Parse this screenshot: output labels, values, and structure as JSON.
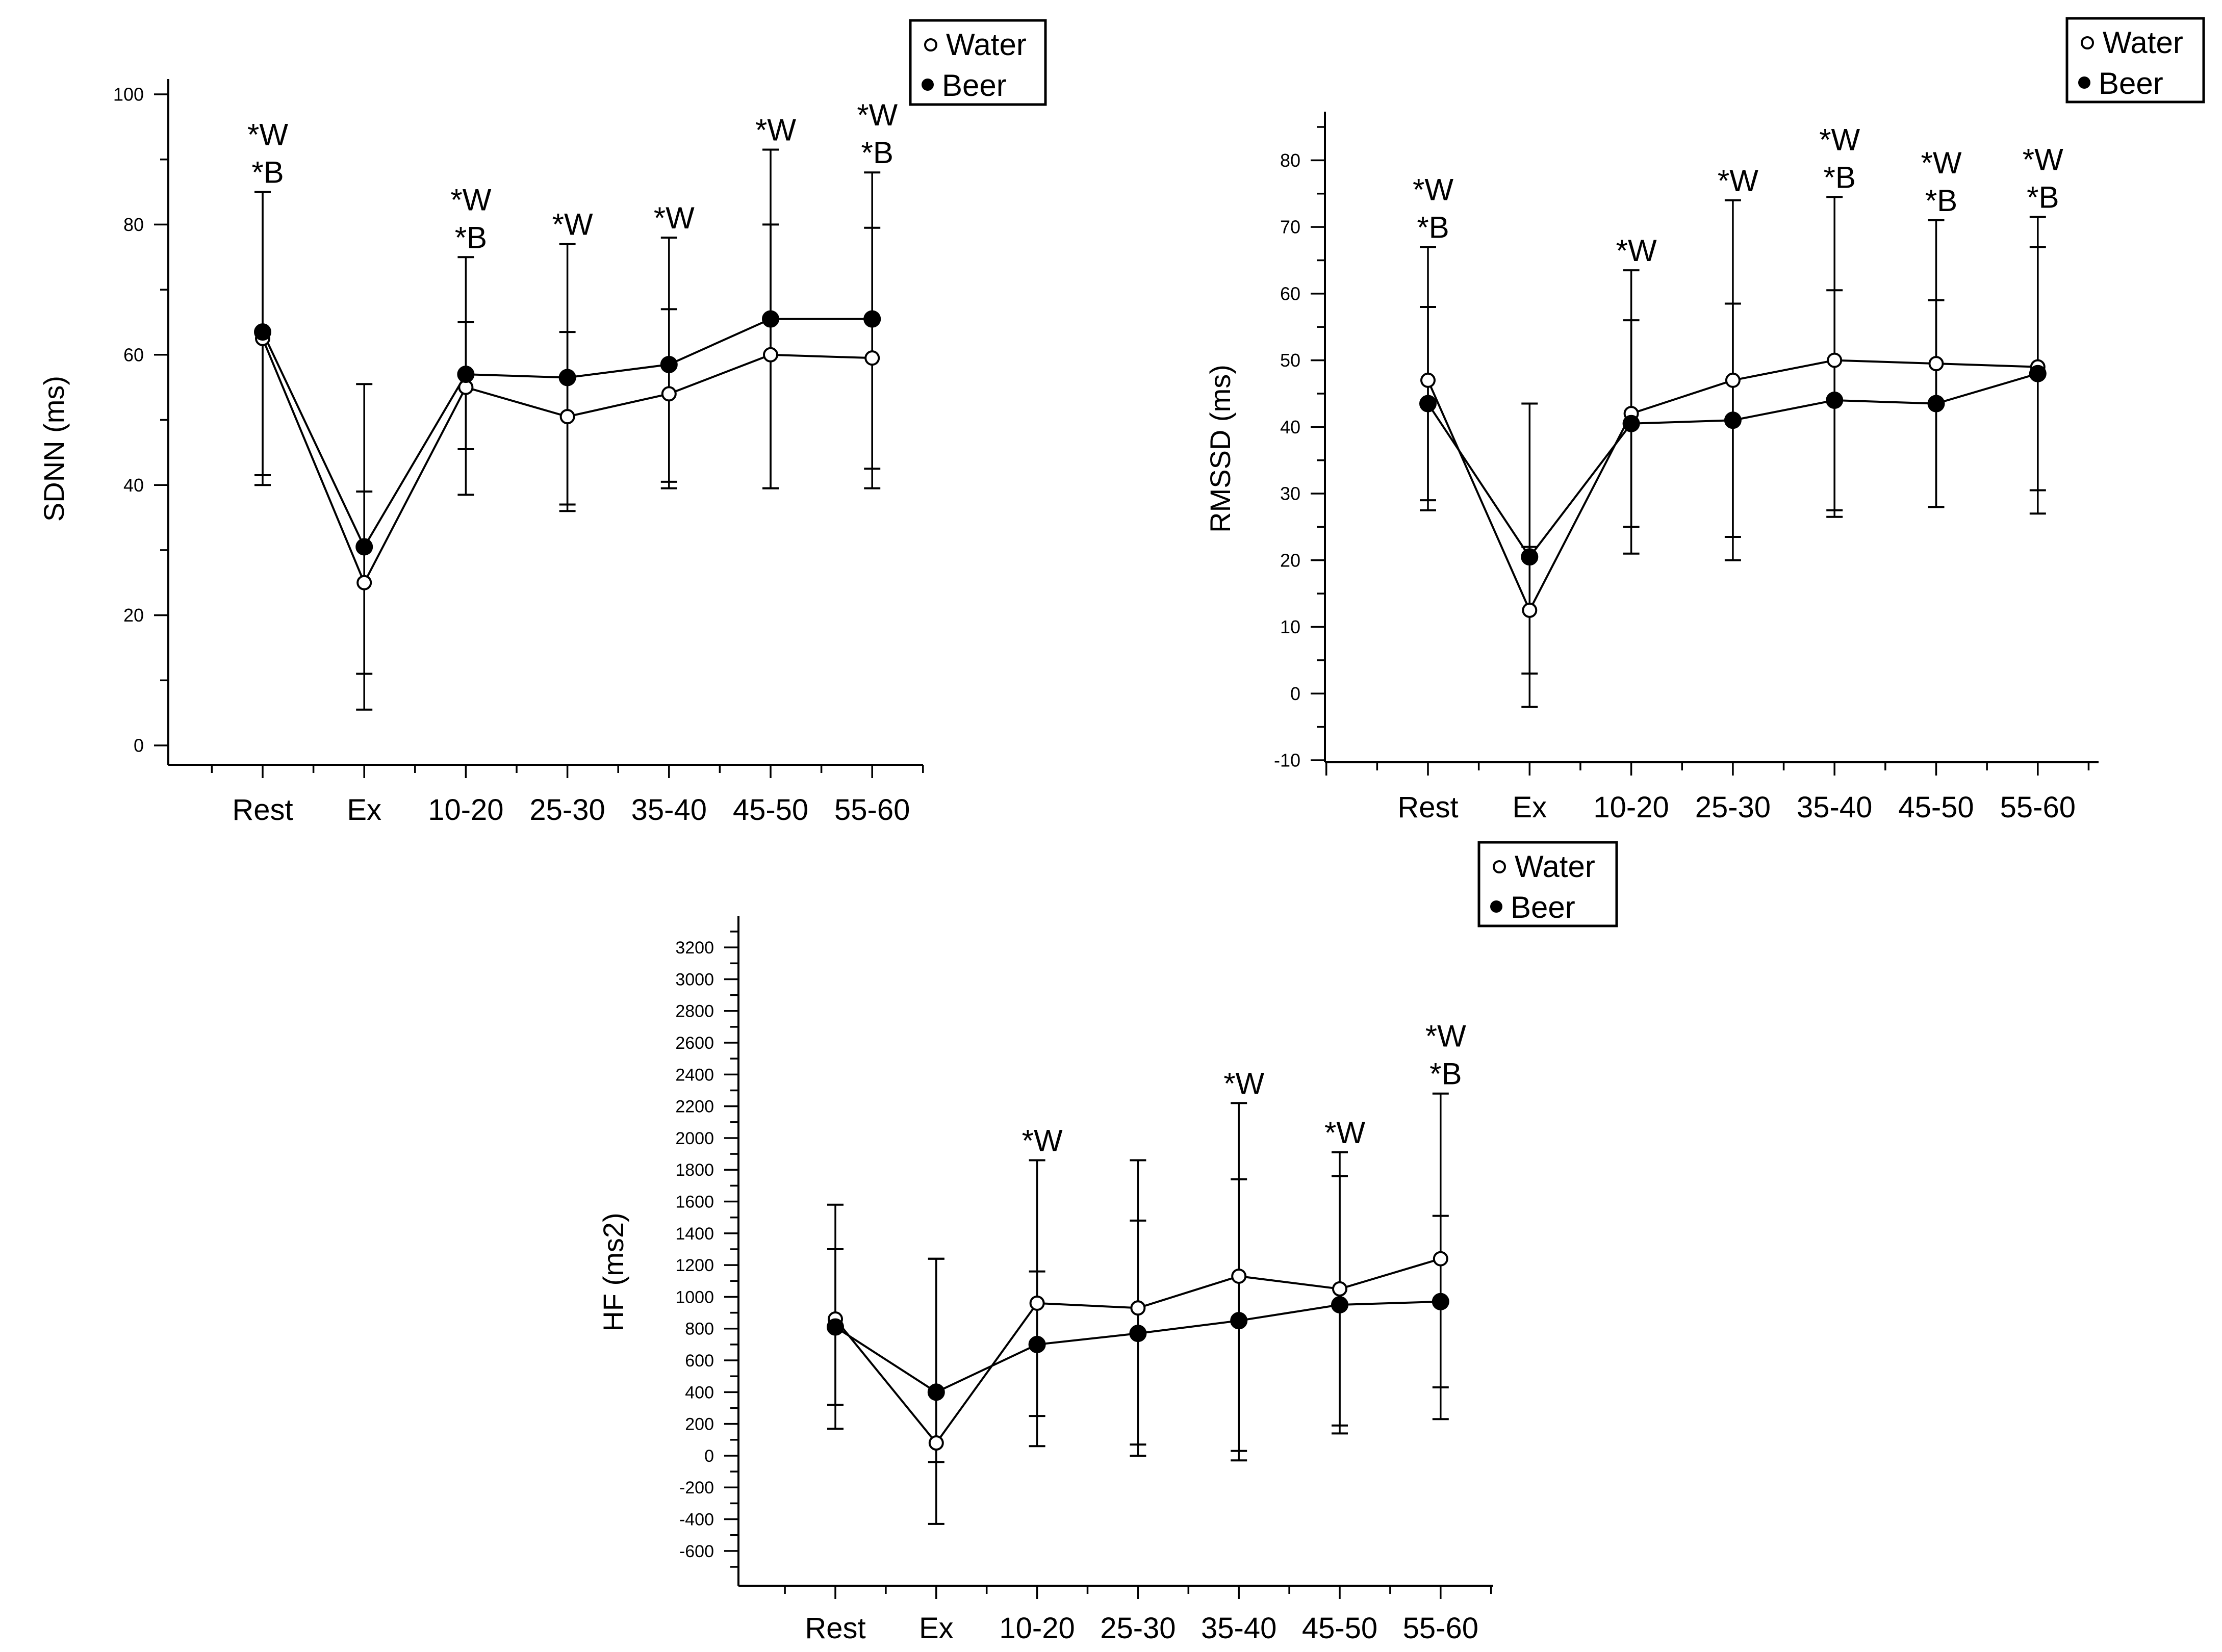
{
  "chart_data": [
    {
      "type": "line",
      "ylabel": "SDNN (ms)",
      "ylim": [
        0,
        100
      ],
      "yticks": [
        0,
        20,
        40,
        60,
        80,
        100
      ],
      "categories": [
        "Rest",
        "Ex",
        "10-20",
        "25-30",
        "35-40",
        "45-50",
        "55-60"
      ],
      "legend": {
        "position": "top-right",
        "water": "Water",
        "beer": "Beer"
      },
      "series": [
        {
          "name": "Water",
          "marker": "open",
          "values": [
            62.5,
            25,
            55,
            50.5,
            54,
            60,
            59.5
          ],
          "err_hi": [
            85,
            39,
            65,
            63.5,
            67,
            80,
            79.5
          ],
          "err_lo": [
            40,
            11,
            45.5,
            37,
            40.5,
            39.5,
            39.5
          ]
        },
        {
          "name": "Beer",
          "marker": "filled",
          "values": [
            63.5,
            30.5,
            57,
            56.5,
            58.5,
            65.5,
            65.5
          ],
          "err_hi": [
            85,
            55.5,
            75,
            77,
            78,
            91.5,
            88
          ],
          "err_lo": [
            41.5,
            5.5,
            38.5,
            36,
            39.5,
            39.5,
            42.5
          ]
        }
      ],
      "annotations": [
        {
          "category": "Rest",
          "lines": [
            "*W",
            "*B"
          ]
        },
        {
          "category": "10-20",
          "lines": [
            "*W",
            "*B"
          ]
        },
        {
          "category": "25-30",
          "lines": [
            "*W"
          ]
        },
        {
          "category": "35-40",
          "lines": [
            "*W"
          ]
        },
        {
          "category": "45-50",
          "lines": [
            "*W"
          ]
        },
        {
          "category": "55-60",
          "lines": [
            "*W",
            "*B"
          ]
        }
      ]
    },
    {
      "type": "line",
      "ylabel": "RMSSD (ms)",
      "ylim": [
        -10,
        85
      ],
      "yticks": [
        -10,
        0,
        10,
        20,
        30,
        40,
        50,
        60,
        70,
        80
      ],
      "categories": [
        "Rest",
        "Ex",
        "10-20",
        "25-30",
        "35-40",
        "45-50",
        "55-60"
      ],
      "legend": {
        "position": "top-right",
        "water": "Water",
        "beer": "Beer"
      },
      "series": [
        {
          "name": "Water",
          "marker": "open",
          "values": [
            47,
            12.5,
            42,
            47,
            50,
            49.5,
            49
          ],
          "err_hi": [
            67,
            22,
            63.5,
            74,
            74.5,
            71,
            71.5
          ],
          "err_lo": [
            27.5,
            3,
            21,
            20,
            26.5,
            28,
            27
          ]
        },
        {
          "name": "Beer",
          "marker": "filled",
          "values": [
            43.5,
            20.5,
            40.5,
            41,
            44,
            43.5,
            48
          ],
          "err_hi": [
            58,
            43.5,
            56,
            58.5,
            60.5,
            59,
            67
          ],
          "err_lo": [
            29,
            -2,
            25,
            23.5,
            27.5,
            28,
            30.5
          ]
        }
      ],
      "annotations": [
        {
          "category": "Rest",
          "lines": [
            "*W",
            "*B"
          ]
        },
        {
          "category": "10-20",
          "lines": [
            "*W"
          ]
        },
        {
          "category": "25-30",
          "lines": [
            "*W"
          ]
        },
        {
          "category": "35-40",
          "lines": [
            "*W",
            "*B"
          ]
        },
        {
          "category": "45-50",
          "lines": [
            "*W",
            "*B"
          ]
        },
        {
          "category": "55-60",
          "lines": [
            "*W",
            "*B"
          ]
        }
      ]
    },
    {
      "type": "line",
      "ylabel": "HF (ms2)",
      "ylim": [
        -700,
        3300
      ],
      "yticks": [
        -600,
        -400,
        -200,
        0,
        200,
        400,
        600,
        800,
        1000,
        1200,
        1400,
        1600,
        1800,
        2000,
        2200,
        2400,
        2600,
        2800,
        3000,
        3200
      ],
      "categories": [
        "Rest",
        "Ex",
        "10-20",
        "25-30",
        "35-40",
        "45-50",
        "55-60"
      ],
      "legend": {
        "position": "top-right",
        "water": "Water",
        "beer": "Beer"
      },
      "series": [
        {
          "name": "Water",
          "marker": "open",
          "values": [
            860,
            80,
            960,
            930,
            1130,
            1050,
            1240
          ],
          "err_hi": [
            1580,
            1240,
            1860,
            1860,
            2220,
            1910,
            2280
          ],
          "err_lo": [
            170,
            -430,
            60,
            0,
            -30,
            190,
            230
          ]
        },
        {
          "name": "Beer",
          "marker": "filled",
          "values": [
            810,
            400,
            700,
            770,
            850,
            950,
            970
          ],
          "err_hi": [
            1300,
            1240,
            1160,
            1480,
            1740,
            1760,
            1510
          ],
          "err_lo": [
            320,
            -40,
            250,
            70,
            30,
            140,
            430
          ]
        }
      ],
      "annotations": [
        {
          "category": "10-20",
          "lines": [
            "*W"
          ]
        },
        {
          "category": "35-40",
          "lines": [
            "*W"
          ]
        },
        {
          "category": "45-50",
          "lines": [
            "*W"
          ]
        },
        {
          "category": "55-60",
          "lines": [
            "*W",
            "*B"
          ]
        }
      ]
    }
  ]
}
